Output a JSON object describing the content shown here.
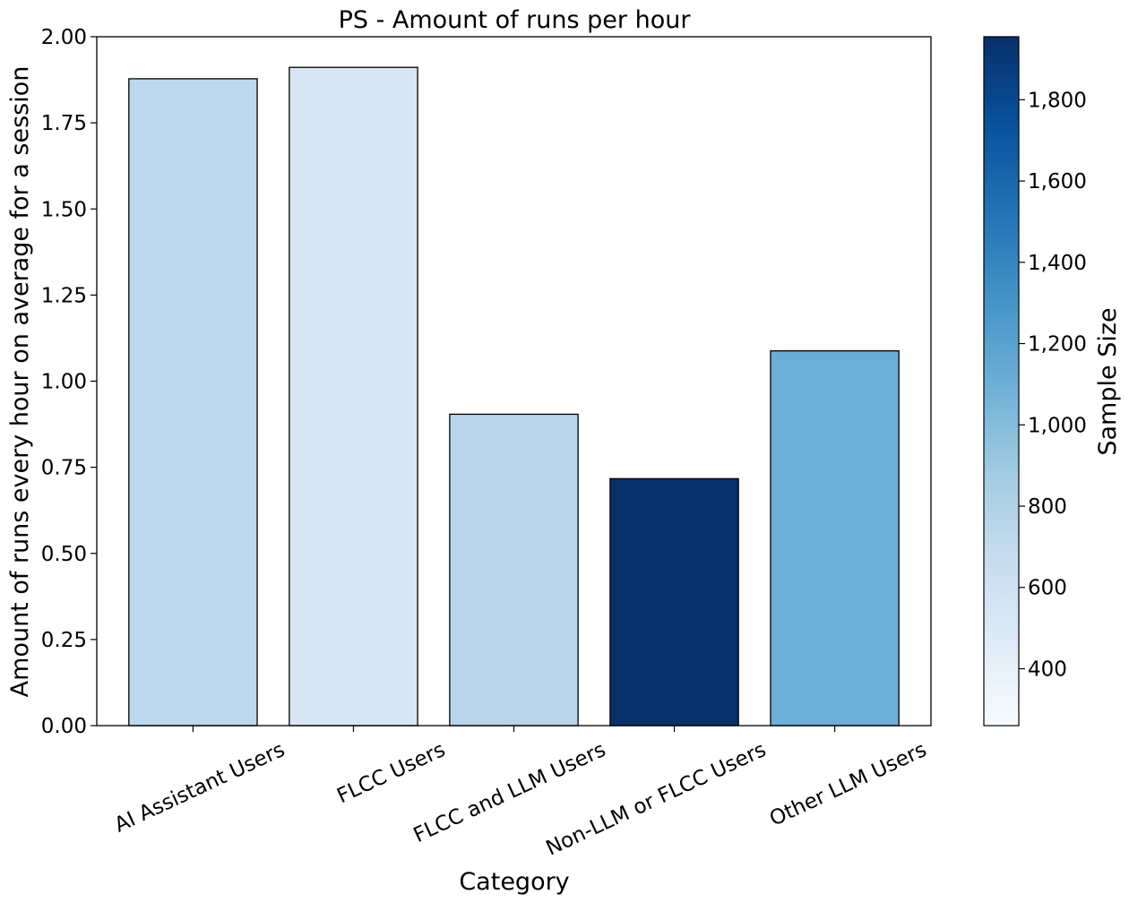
{
  "chart_data": {
    "type": "bar",
    "title": "PS - Amount of runs per hour",
    "xlabel": "Category",
    "ylabel": "Amount of runs every hour on average for a session",
    "categories": [
      "AI Assistant Users",
      "FLCC Users",
      "FLCC and LLM Users",
      "Non-LLM or FLCC Users",
      "Other LLM Users"
    ],
    "values": [
      1.878,
      1.911,
      0.904,
      0.717,
      1.088
    ],
    "ylim": [
      0,
      2.0
    ],
    "yticks": [
      "0.00",
      "0.25",
      "0.50",
      "0.75",
      "1.00",
      "1.25",
      "1.50",
      "1.75",
      "2.00"
    ],
    "grid": false,
    "bar_colors": [
      "#bdd7ec",
      "#d9e7f5",
      "#b7d4ea",
      "#08306b",
      "#6baed6"
    ],
    "bar_edge_color": "#000000",
    "colorbar": {
      "label": "Sample Size",
      "colormap": "Blues",
      "range": [
        260,
        1955
      ],
      "tick_values": [
        400,
        600,
        800,
        1000,
        1200,
        1400,
        1600,
        1800
      ],
      "tick_labels": [
        "400",
        "600",
        "800",
        "1,000",
        "1,200",
        "1,400",
        "1,600",
        "1,800"
      ]
    }
  }
}
